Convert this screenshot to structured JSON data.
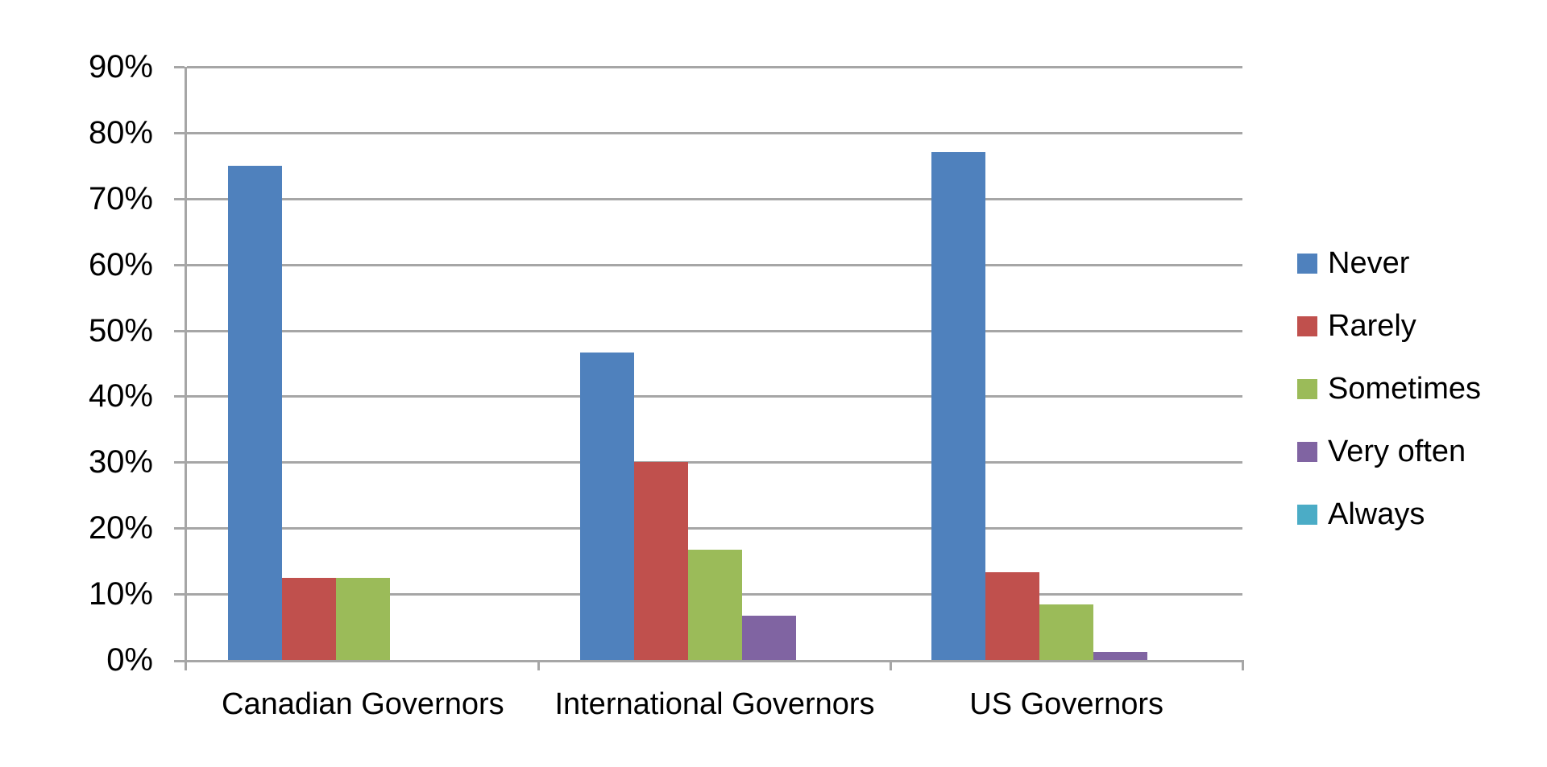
{
  "chart_data": {
    "type": "bar",
    "title": "",
    "categories": [
      "Canadian Governors",
      "International Governors",
      "US Governors"
    ],
    "series": [
      {
        "name": "Never",
        "color": "#4F81BD",
        "values": [
          75,
          46.7,
          77.1
        ]
      },
      {
        "name": "Rarely",
        "color": "#C0504D",
        "values": [
          12.5,
          30,
          13.3
        ]
      },
      {
        "name": "Sometimes",
        "color": "#9BBB59",
        "values": [
          12.5,
          16.7,
          8.4
        ]
      },
      {
        "name": "Very often",
        "color": "#8064A2",
        "values": [
          0,
          6.7,
          1.2
        ]
      },
      {
        "name": "Always",
        "color": "#4BACC6",
        "values": [
          0,
          0,
          0
        ]
      }
    ],
    "xlabel": "",
    "ylabel": "",
    "ylim": [
      0,
      90
    ],
    "ytick_step": 10,
    "ytick_labels": [
      "90%",
      "80%",
      "70%",
      "60%",
      "50%",
      "40%",
      "30%",
      "20%",
      "10%",
      "0%"
    ],
    "ytick_values": [
      90,
      80,
      70,
      60,
      50,
      40,
      30,
      20,
      10,
      0
    ],
    "grid": true,
    "legend_position": "right"
  },
  "style": {
    "grid_color": "#A6A6A6",
    "axis_color": "#A6A6A6",
    "text_color": "#000000",
    "background_color": "#FFFFFF"
  }
}
